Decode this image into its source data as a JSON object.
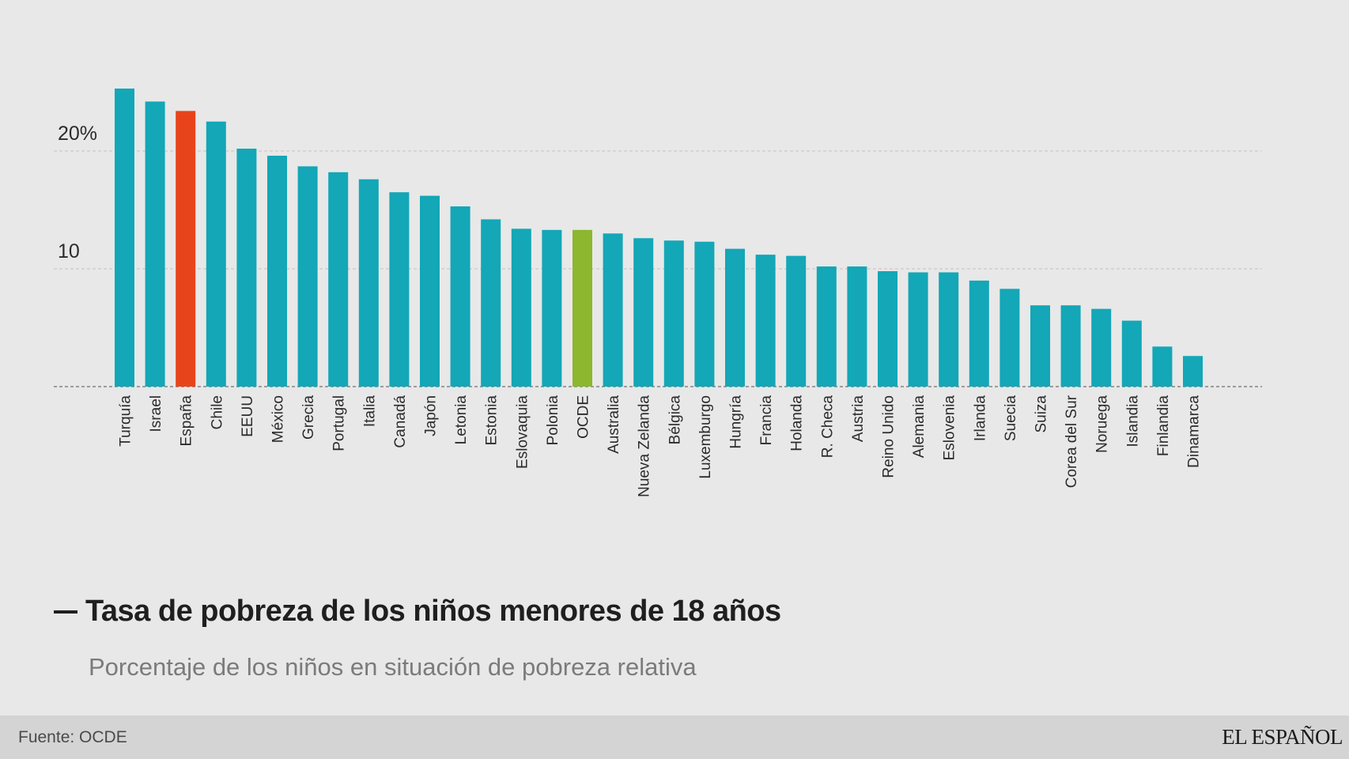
{
  "chart_data": {
    "type": "bar",
    "title": "Tasa de pobreza de los niños menores de 18 años",
    "subtitle": "Porcentaje de los niños en situación de pobreza relativa",
    "ylim": [
      0,
      26
    ],
    "y_ticks": [
      {
        "value": 20,
        "label": "20%"
      },
      {
        "value": 10,
        "label": "10"
      }
    ],
    "grid": true,
    "categories": [
      "Turquía",
      "Israel",
      "España",
      "Chile",
      "EEUU",
      "México",
      "Grecia",
      "Portugal",
      "Italia",
      "Canadá",
      "Japón",
      "Letonia",
      "Estonia",
      "Eslovaquia",
      "Polonia",
      "OCDE",
      "Australia",
      "Nueva Zelanda",
      "Bélgica",
      "Luxemburgo",
      "Hungría",
      "Francia",
      "Holanda",
      "R. Checa",
      "Austria",
      "Reino Unido",
      "Alemania",
      "Eslovenia",
      "Irlanda",
      "Suecia",
      "Suiza",
      "Corea del Sur",
      "Noruega",
      "Islandia",
      "Finlandia",
      "Dinamarca"
    ],
    "values": [
      25.3,
      24.2,
      23.4,
      22.5,
      20.2,
      19.6,
      18.7,
      18.2,
      17.6,
      16.5,
      16.2,
      15.3,
      14.2,
      13.4,
      13.3,
      13.3,
      13.0,
      12.6,
      12.4,
      12.3,
      11.7,
      11.2,
      11.1,
      10.2,
      10.2,
      9.8,
      9.7,
      9.7,
      9.0,
      8.3,
      6.9,
      6.9,
      6.6,
      5.6,
      3.4,
      2.6
    ],
    "colors": {
      "default": "#13a7b7",
      "España": "#e8441c",
      "OCDE": "#8cb72f"
    }
  },
  "footer": {
    "source": "Fuente: OCDE",
    "logo": "EL ESPAÑOL"
  }
}
